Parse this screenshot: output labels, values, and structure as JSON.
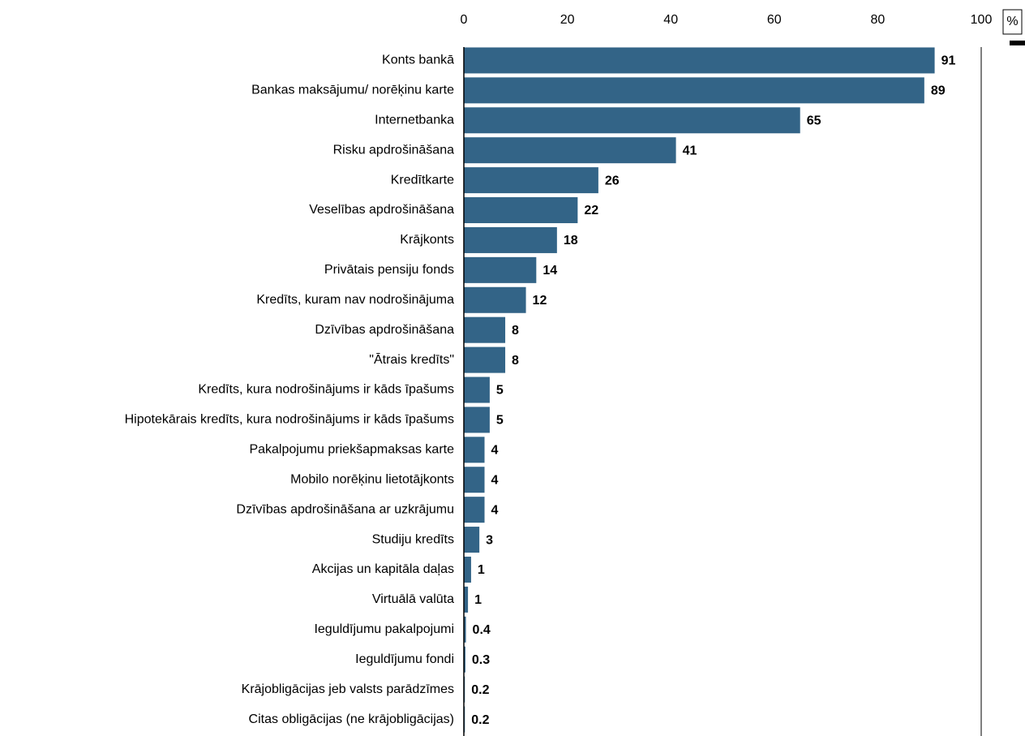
{
  "chart_data": {
    "type": "bar",
    "orientation": "horizontal",
    "unit": "%",
    "categories": [
      "Konts bankā",
      "Bankas maksājumu/ norēķinu karte",
      "Internetbanka",
      "Risku apdrošināšana",
      "Kredītkarte",
      "Veselības apdrošināšana",
      "Krājkonts",
      "Privātais pensiju fonds",
      "Kredīts, kuram nav nodrošinājuma",
      "Dzīvības apdrošināšana",
      "\"Ātrais kredīts\"",
      "Kredīts, kura nodrošinājums ir kāds īpašums",
      "Hipotekārais kredīts, kura nodrošinājums ir kāds īpašums",
      "Pakalpojumu priekšapmaksas karte",
      "Mobilo norēķinu lietotājkonts",
      "Dzīvības apdrošināšana ar uzkrājumu",
      "Studiju kredīts",
      "Akcijas un kapitāla daļas",
      "Virtuālā valūta",
      "Ieguldījumu pakalpojumi",
      "Ieguldījumu fondi",
      "Krājobligācijas jeb valsts parādzīmes",
      "Citas obligācijas (ne krājobligācijas)"
    ],
    "values": [
      91,
      89,
      65,
      41,
      26,
      22,
      18,
      14,
      12,
      8,
      8,
      5,
      5,
      4,
      4,
      4,
      3,
      1.4,
      0.8,
      0.4,
      0.3,
      0.2,
      0.2
    ],
    "value_labels": [
      "91",
      "89",
      "65",
      "41",
      "26",
      "22",
      "18",
      "14",
      "12",
      "8",
      "8",
      "5",
      "5",
      "4",
      "4",
      "4",
      "3",
      "1",
      "1",
      "0.4",
      "0.3",
      "0.2",
      "0.2"
    ],
    "color": "#336487",
    "xlim": [
      0,
      100
    ],
    "xticks": [
      0,
      20,
      40,
      60,
      80,
      100
    ],
    "grid": false
  }
}
